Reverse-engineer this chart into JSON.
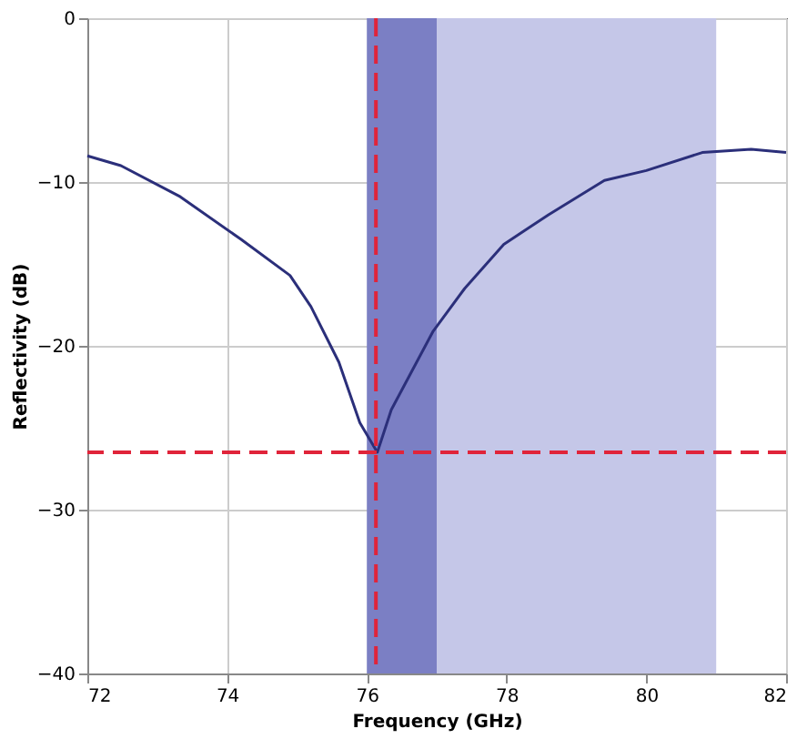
{
  "chart_data": {
    "type": "line",
    "xlabel": "Frequency (GHz)",
    "ylabel": "Reflectivity (dB)",
    "x": [
      72,
      72.48,
      73.33,
      74.2,
      74.9,
      75.2,
      75.6,
      75.9,
      76.15,
      76.35,
      76.95,
      77.4,
      77.96,
      78.6,
      79.4,
      80.0,
      80.8,
      81.5,
      82
    ],
    "series": [
      {
        "color": "#2b2f7a",
        "values": [
          -8.4,
          -9.0,
          -10.9,
          -13.5,
          -15.7,
          -17.6,
          -21.0,
          -24.7,
          -26.5,
          -23.9,
          -19.1,
          -16.5,
          -13.8,
          -12.0,
          -9.9,
          -9.3,
          -8.2,
          -8.0,
          -8.2
        ]
      }
    ],
    "xlim": [
      72,
      82
    ],
    "xticks": [
      72,
      74,
      76,
      78,
      80,
      82
    ],
    "ylim": [
      -40,
      0
    ],
    "yticks": [
      -40,
      -30,
      -20,
      -10,
      0
    ],
    "grid": true,
    "line_style": "solid",
    "marker": "none",
    "bands": [
      {
        "axis": "x",
        "from": 76,
        "to": 77,
        "color": "#7b7fc4"
      },
      {
        "axis": "x",
        "from": 77,
        "to": 81,
        "color": "#c5c7e8"
      }
    ],
    "ref_lines": [
      {
        "axis": "y",
        "value": -26.5,
        "color": "#e0243a",
        "line_style": "dashed"
      },
      {
        "axis": "x",
        "value": 76.13,
        "color": "#e0243a",
        "line_style": "dashed"
      }
    ]
  }
}
